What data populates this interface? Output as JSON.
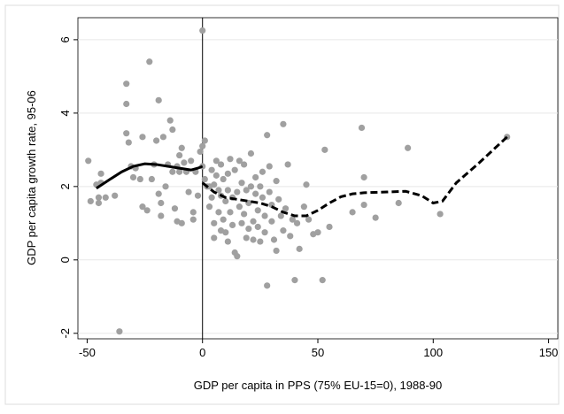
{
  "chart_data": {
    "type": "scatter",
    "x_label": "GDP per capita in PPS (75% EU-15=0), 1988-90",
    "y_label": "GDP per capita growth rate, 95-06",
    "xlim": [
      -54,
      154
    ],
    "ylim": [
      -2.15,
      6.6
    ],
    "xticks": [
      -50,
      0,
      50,
      100,
      150
    ],
    "yticks": [
      -2,
      0,
      2,
      4,
      6
    ],
    "grid": true,
    "vline": 0,
    "color": "#a0a0a0",
    "x": [
      -49.5,
      -48.5,
      -46,
      -45,
      -45,
      -44,
      -44,
      -42,
      -38,
      -36,
      -33,
      -33,
      -33,
      -32,
      -31,
      -30,
      -29,
      -27,
      -26,
      -26,
      -24,
      -23,
      -22,
      -21,
      -20,
      -19,
      -19,
      -18,
      -18,
      -17,
      -16,
      -15,
      -14,
      -13,
      -13,
      -12,
      -11,
      -11,
      -10,
      -10,
      -9,
      -9,
      -8,
      -7,
      -6,
      -5,
      -4,
      -4,
      -3,
      -2,
      -1,
      0,
      0,
      0,
      1,
      1,
      2,
      3,
      3,
      4,
      4,
      5,
      5,
      5,
      6,
      6,
      7,
      7,
      8,
      8,
      8,
      9,
      9,
      10,
      10,
      11,
      11,
      11,
      12,
      12,
      13,
      13,
      14,
      14,
      15,
      15,
      16,
      16,
      17,
      17,
      18,
      18,
      19,
      19,
      20,
      20,
      21,
      21,
      22,
      22,
      23,
      23,
      24,
      24,
      25,
      25,
      26,
      26,
      27,
      27,
      28,
      28,
      29,
      29,
      30,
      30,
      31,
      32,
      32,
      33,
      34,
      35,
      35,
      36,
      37,
      38,
      39,
      40,
      41,
      42,
      44,
      45,
      46,
      48,
      50,
      52,
      53,
      55,
      65,
      69,
      70,
      70,
      75,
      85,
      89,
      103,
      132
    ],
    "values": [
      2.7,
      1.6,
      2.05,
      1.7,
      1.55,
      2.1,
      2.35,
      1.7,
      1.75,
      -1.95,
      4.8,
      4.25,
      3.45,
      3.2,
      2.55,
      2.25,
      2.5,
      2.2,
      3.35,
      1.45,
      1.35,
      5.4,
      2.2,
      2.6,
      3.25,
      4.35,
      1.8,
      1.2,
      1.55,
      3.35,
      2.0,
      2.6,
      3.8,
      3.55,
      2.4,
      1.4,
      2.55,
      1.05,
      2.85,
      2.4,
      3.05,
      1.0,
      2.65,
      2.4,
      1.85,
      2.7,
      1.1,
      1.3,
      2.4,
      1.75,
      2.95,
      6.25,
      2.55,
      3.1,
      3.25,
      2.2,
      2.0,
      2.0,
      1.45,
      1.7,
      2.45,
      2.05,
      1.0,
      0.6,
      2.7,
      2.3,
      1.9,
      1.3,
      1.75,
      0.8,
      2.6,
      1.1,
      2.2,
      1.6,
      0.75,
      2.35,
      1.9,
      0.5,
      1.3,
      2.75,
      1.7,
      0.95,
      0.2,
      2.45,
      1.85,
      0.1,
      2.7,
      1.45,
      1.0,
      2.1,
      2.6,
      1.25,
      0.6,
      1.9,
      0.85,
      1.55,
      2.9,
      2.0,
      1.05,
      0.55,
      1.8,
      2.25,
      0.9,
      1.35,
      2.0,
      0.5,
      1.7,
      2.4,
      0.75,
      1.2,
      3.4,
      -0.7,
      1.85,
      2.55,
      1.5,
      1.05,
      0.55,
      2.15,
      0.25,
      1.65,
      1.2,
      3.7,
      0.8,
      1.4,
      2.6,
      0.65,
      1.1,
      -0.55,
      1.0,
      0.3,
      1.45,
      2.05,
      1.1,
      0.7,
      0.75,
      -0.55,
      3.0,
      0.9,
      1.3,
      3.6,
      2.25,
      1.5,
      1.15,
      1.55,
      3.05,
      1.25,
      3.35
    ],
    "lines": [
      {
        "style": "solid",
        "color": "#000000",
        "x": [
          -46,
          -40,
          -35,
          -30,
          -25,
          -20,
          -15,
          -10,
          -5,
          -2,
          0
        ],
        "values": [
          1.95,
          2.2,
          2.4,
          2.55,
          2.62,
          2.6,
          2.55,
          2.5,
          2.45,
          2.5,
          2.55
        ]
      },
      {
        "style": "dashed",
        "color": "#000000",
        "x": [
          0,
          5,
          10,
          15,
          20,
          25,
          30,
          35,
          40,
          45,
          50,
          55,
          60,
          65,
          70,
          80,
          88,
          95,
          100,
          104,
          110,
          120,
          132
        ],
        "values": [
          2.1,
          1.85,
          1.7,
          1.65,
          1.6,
          1.55,
          1.45,
          1.3,
          1.2,
          1.2,
          1.35,
          1.55,
          1.72,
          1.8,
          1.83,
          1.85,
          1.87,
          1.75,
          1.55,
          1.6,
          2.1,
          2.65,
          3.35
        ]
      }
    ]
  }
}
